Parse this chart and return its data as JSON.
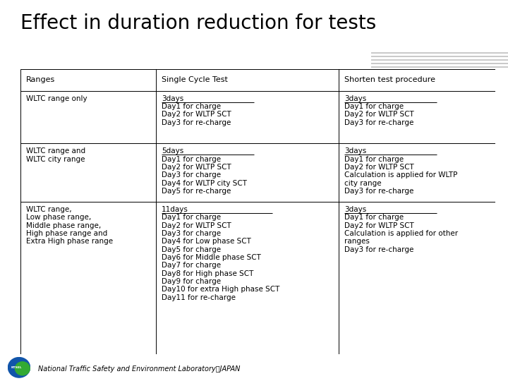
{
  "title": "Effect in duration reduction for tests",
  "title_fontsize": 20,
  "title_color": "#000000",
  "header_bar_color1": "#3b3b9e",
  "header_bar_color2": "#1a1a6e",
  "header_stripe_color": "#c0c0c0",
  "bg_color": "#ffffff",
  "footer_text": "National Traffic Safety and Environment Laboratory．JAPAN",
  "table_border_color": "#000000",
  "col_headers": [
    "Ranges",
    "Single Cycle Test",
    "Shorten test procedure"
  ],
  "row1_col0": "WLTC range only",
  "row1_col1_bold": "3days",
  "row1_col1_rest": "Day1 for charge\nDay2 for WLTP SCT\nDay3 for re-charge",
  "row1_col2_bold": "3days",
  "row1_col2_rest": "Day1 for charge\nDay2 for WLTP SCT\nDay3 for re-charge",
  "row2_col0": "WLTC range and\nWLTC city range",
  "row2_col1_bold": "5days",
  "row2_col1_rest": "Day1 for charge\nDay2 for WLTP SCT\nDay3 for charge\nDay4 for WLTP city SCT\nDay5 for re-charge",
  "row2_col2_bold": "3days",
  "row2_col2_rest": "Day1 for charge\nDay2 for WLTP SCT\nCalculation is applied for WLTP\ncity range\nDay3 for re-charge",
  "row3_col0": "WLTC range,\nLow phase range,\nMiddle phase range,\nHigh phase range and\nExtra High phase range",
  "row3_col1_bold": "11days",
  "row3_col1_rest": "Day1 for charge\nDay2 for WLTP SCT\nDay3 for charge\nDay4 for Low phase SCT\nDay5 for charge\nDay6 for Middle phase SCT\nDay7 for charge\nDay8 for High phase SCT\nDay9 for charge\nDay10 for extra High phase SCT\nDay11 for re-charge",
  "row3_col2_bold": "3days",
  "row3_col2_rest": "Day1 for charge\nDay2 for WLTP SCT\nCalculation is applied for other\nranges\nDay3 for re-charge",
  "cell_fontsize": 7.5
}
